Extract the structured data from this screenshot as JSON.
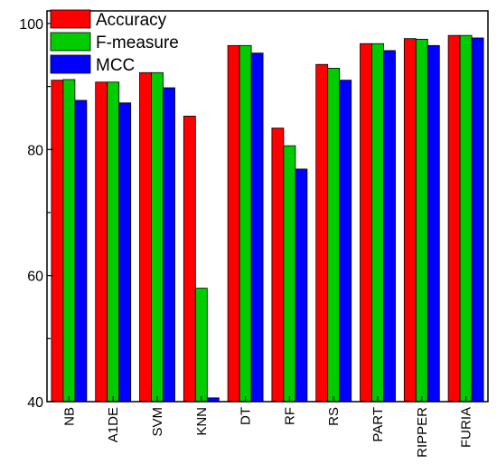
{
  "chart_data": {
    "type": "bar",
    "title": "",
    "xlabel": "",
    "ylabel": "",
    "categories": [
      "NB",
      "A1DE",
      "SVM",
      "KNN",
      "DT",
      "RF",
      "RS",
      "PART",
      "RIPPER",
      "FURIA"
    ],
    "series": [
      {
        "name": "Accuracy",
        "color": "#ff0000",
        "values": [
          91.0,
          90.7,
          92.2,
          85.3,
          96.5,
          83.4,
          93.5,
          96.8,
          97.6,
          98.1
        ]
      },
      {
        "name": "F-measure",
        "color": "#00cc00",
        "values": [
          91.1,
          90.7,
          92.2,
          58.0,
          96.5,
          80.6,
          92.9,
          96.8,
          97.5,
          98.1
        ]
      },
      {
        "name": "MCC",
        "color": "#0000ff",
        "values": [
          87.8,
          87.4,
          89.8,
          40.6,
          95.3,
          76.9,
          91.0,
          95.7,
          96.5,
          97.7
        ]
      }
    ],
    "ylim": [
      40,
      102
    ],
    "yticks": [
      "40",
      "60",
      "80",
      "100"
    ],
    "legend_position": "top-left",
    "grid": false
  }
}
